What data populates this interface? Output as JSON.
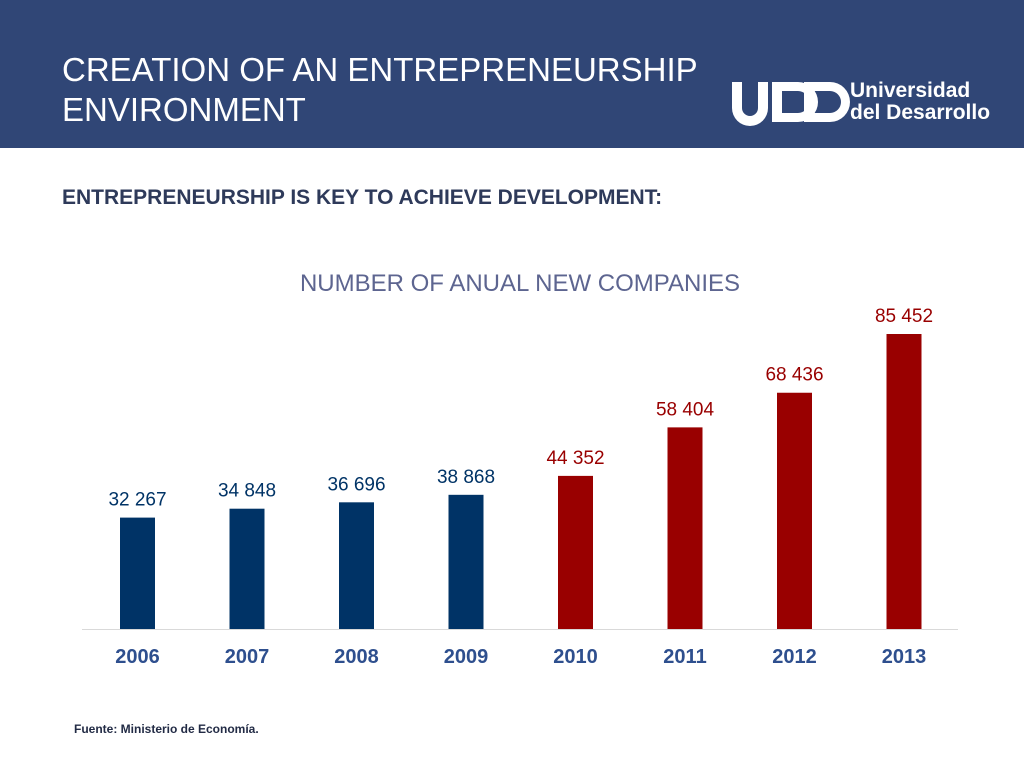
{
  "header": {
    "title_lines": [
      "CREATION OF AN ENTREPRENEURSHIP",
      "ENVIRONMENT"
    ],
    "logo_text_lines": [
      "Universidad",
      "del Desarrollo"
    ],
    "background_color": "#304676"
  },
  "subtitle": "ENTREPRENEURSHIP IS KEY TO ACHIEVE DEVELOPMENT:",
  "source": "Fuente: Ministerio de Economía.",
  "chart_data": {
    "type": "bar",
    "title": "NUMBER OF ANUAL NEW COMPANIES",
    "xlabel": "",
    "ylabel": "",
    "categories": [
      "2006",
      "2007",
      "2008",
      "2009",
      "2010",
      "2011",
      "2012",
      "2013"
    ],
    "values": [
      32267,
      34848,
      36696,
      38868,
      44352,
      58404,
      68436,
      85452
    ],
    "value_labels": [
      "32 267",
      "34 848",
      "36 696",
      "38 868",
      "44 352",
      "58 404",
      "68 436",
      "85 452"
    ],
    "ylim": [
      0,
      85452
    ],
    "grid": false,
    "legend": "none",
    "colors": [
      "#003366",
      "#003366",
      "#003366",
      "#003366",
      "#990000",
      "#990000",
      "#990000",
      "#990000"
    ]
  }
}
